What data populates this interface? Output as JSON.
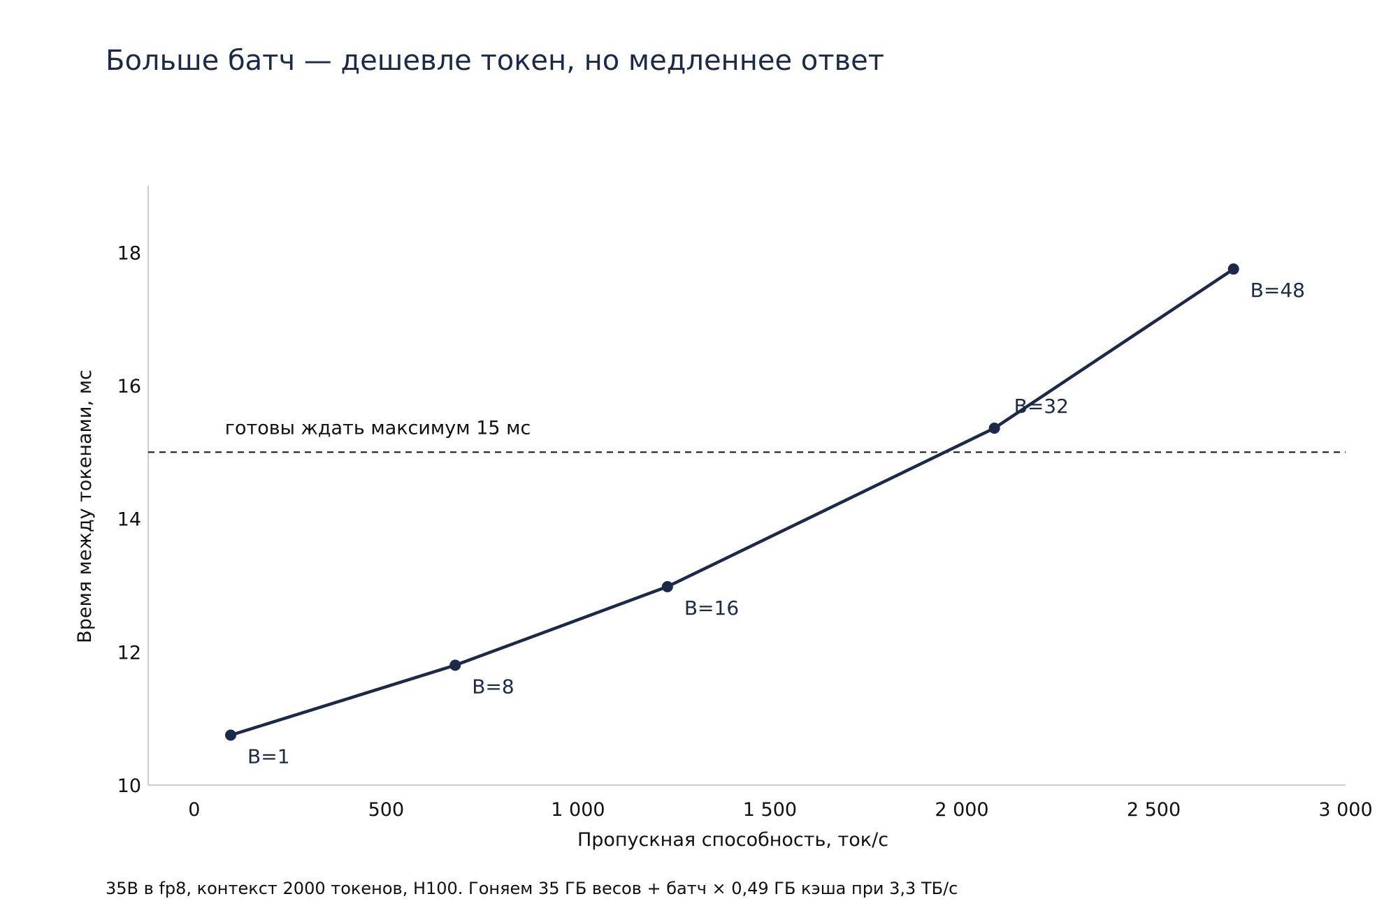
{
  "title": "Больше батч — дешевле токен, но медленнее ответ",
  "footnote": "35B в fp8, контекст 2000 токенов, H100. Гоняем 35 ГБ весов + батч × 0,49 ГБ кэша при 3,3 ТБ/с",
  "colors": {
    "line": "#1b2a4a",
    "text": "#111111",
    "axis": "#cccccc",
    "title": "#1b2a4a"
  },
  "chart_data": {
    "type": "line",
    "xlabel": "Пропускная способность, ток/с",
    "ylabel": "Время между токенами, мс",
    "xlim": [
      -120,
      3000
    ],
    "ylim": [
      10,
      19
    ],
    "x_ticks": [
      0,
      500,
      1000,
      1500,
      2000,
      2500,
      3000
    ],
    "x_tick_labels": [
      "0",
      "500",
      "1 000",
      "1 500",
      "2 000",
      "2 500",
      "3 000"
    ],
    "y_ticks": [
      10,
      12,
      14,
      16,
      18
    ],
    "y_tick_labels": [
      "10",
      "12",
      "14",
      "16",
      "18"
    ],
    "grid": false,
    "series": [
      {
        "points": [
          {
            "x": 95,
            "y": 10.75,
            "label": "B=1"
          },
          {
            "x": 680,
            "y": 11.8,
            "label": "B=8"
          },
          {
            "x": 1233,
            "y": 12.98,
            "label": "B=16"
          },
          {
            "x": 2085,
            "y": 15.36,
            "label": "B=32"
          },
          {
            "x": 2708,
            "y": 17.75,
            "label": "B=48"
          }
        ]
      }
    ],
    "reference_line": {
      "y": 15,
      "label": "готовы ждать максимум 15 мс",
      "style": "dashed"
    }
  }
}
